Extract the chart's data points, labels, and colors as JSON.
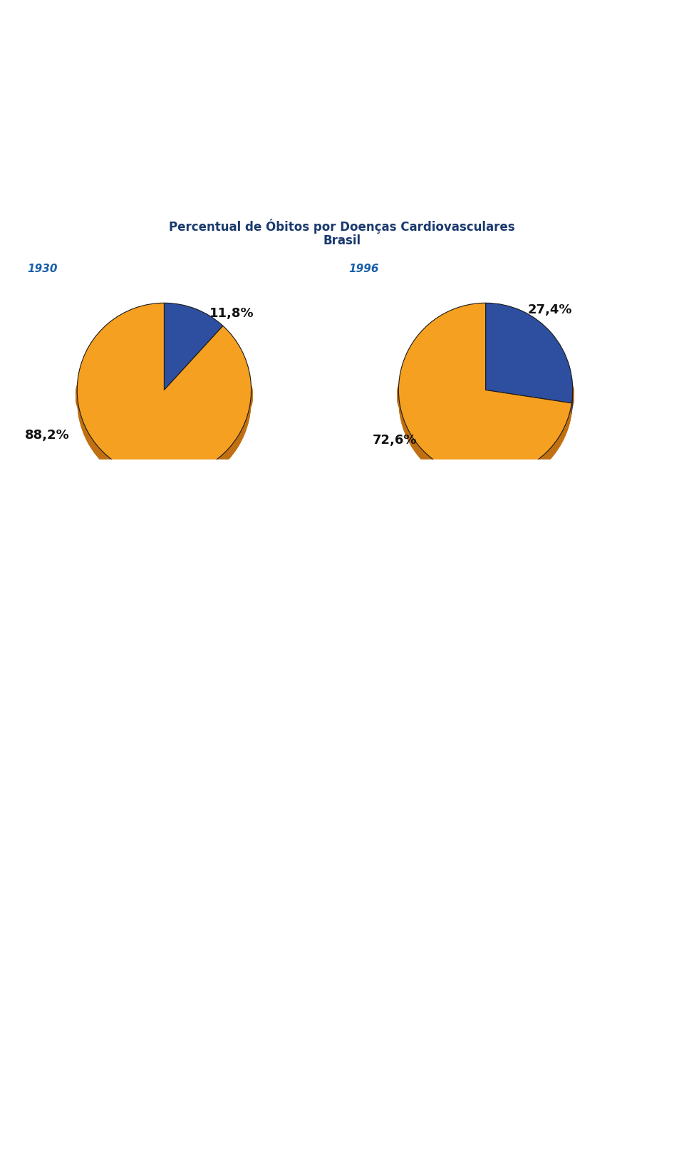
{
  "title_line1": "Percentual de Óbitos por Doenças Cardiovasculares",
  "title_line2": "Brasil",
  "title_color": "#1a3a6e",
  "year1": "1930",
  "year2": "1996",
  "year_color": "#1a5fa8",
  "pie1_values": [
    11.8,
    88.2
  ],
  "pie2_values": [
    27.4,
    72.6
  ],
  "pie1_labels": [
    "11,8%",
    "88,2%"
  ],
  "pie2_labels": [
    "27,4%",
    "72,6%"
  ],
  "color_dcv": "#2e4fa0",
  "color_other": "#f5a020",
  "color_shadow": "#c07010",
  "background_color": "#ffffff",
  "label_fontsize": 13,
  "year_fontsize": 11,
  "title_fontsize": 12
}
